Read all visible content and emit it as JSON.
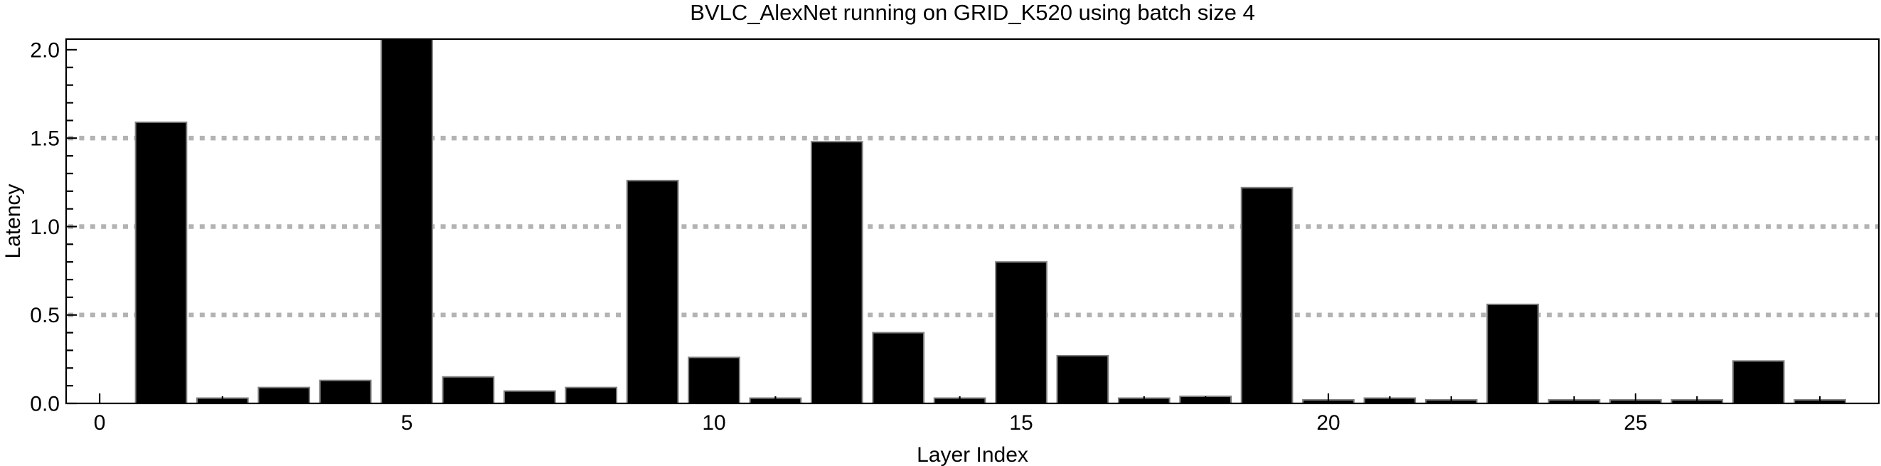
{
  "chart_data": {
    "type": "bar",
    "title": "BVLC_AlexNet running on GRID_K520 using batch size 4",
    "xlabel": "Layer Index",
    "ylabel": "Latency",
    "x": [
      1,
      2,
      3,
      4,
      5,
      6,
      7,
      8,
      9,
      10,
      11,
      12,
      13,
      14,
      15,
      16,
      17,
      18,
      19,
      20,
      21,
      22,
      23,
      24,
      25,
      26,
      27,
      28
    ],
    "values": [
      1.59,
      0.03,
      0.09,
      0.13,
      2.06,
      0.15,
      0.07,
      0.09,
      1.26,
      0.26,
      0.03,
      1.48,
      0.4,
      0.03,
      0.8,
      0.27,
      0.03,
      0.04,
      1.22,
      0.02,
      0.03,
      0.02,
      0.56,
      0.02,
      0.02,
      0.02,
      0.24,
      0.02
    ],
    "xlim": [
      -0.545,
      28.96
    ],
    "ylim": [
      0,
      2.06
    ],
    "xticks": [
      0,
      5,
      10,
      15,
      20,
      25
    ],
    "xtick_labels": [
      "0",
      "5",
      "10",
      "15",
      "20",
      "25"
    ],
    "x_minor_tick_step": 1,
    "yticks": [
      0.0,
      0.5,
      1.0,
      1.5,
      2.0
    ],
    "ytick_labels": [
      "0.0",
      "0.5",
      "1.0",
      "1.5",
      "2.0"
    ],
    "y_minor_tick_step": 0.1,
    "gridlines_y": [
      0.5,
      1.0,
      1.5
    ],
    "grid_style": "dotted",
    "grid_on": true,
    "legend_position": "none",
    "bar_width_data_units": 0.83,
    "colors": {
      "bar_fill": "#000000",
      "bar_edge": "#808080",
      "grid": "#b3b3b3",
      "frame": "#000000",
      "text": "#000000",
      "background": "#ffffff"
    }
  }
}
